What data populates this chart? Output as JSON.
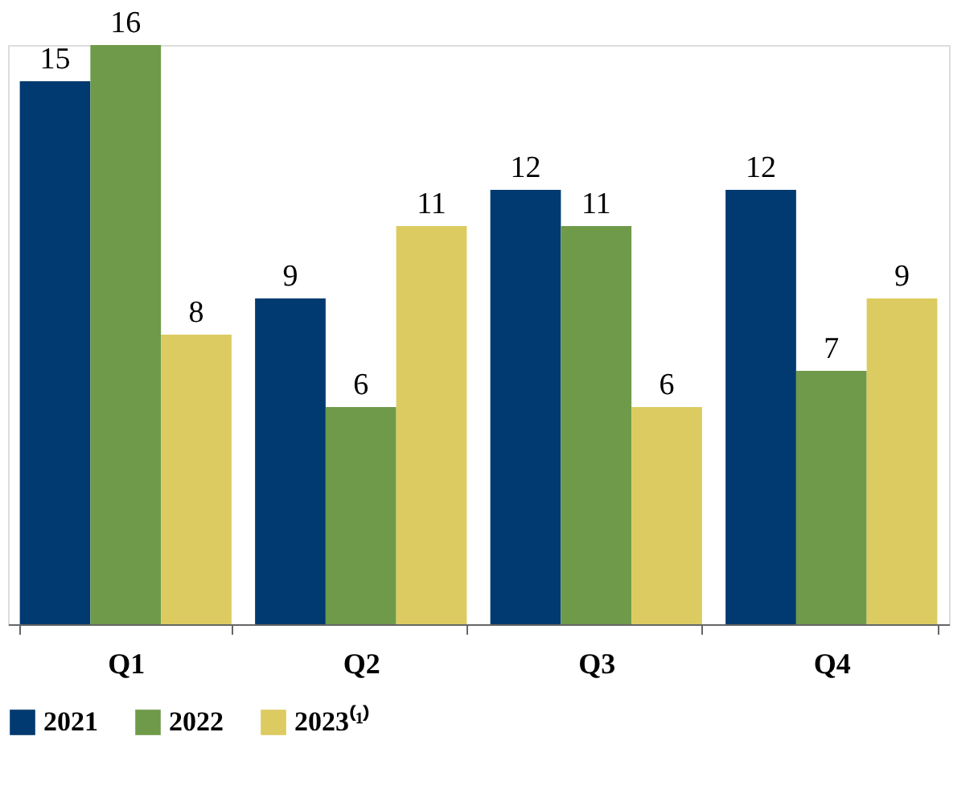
{
  "chart_data": {
    "type": "bar",
    "categories": [
      "Q1",
      "Q2",
      "Q3",
      "Q4"
    ],
    "series": [
      {
        "name": "2021",
        "color": "#003a70",
        "values": [
          15,
          9,
          12,
          12
        ]
      },
      {
        "name": "2022",
        "color": "#6f9a4a",
        "values": [
          16,
          6,
          11,
          7
        ]
      },
      {
        "name": "2023⁽¹⁾",
        "color": "#dccb60",
        "values": [
          8,
          11,
          6,
          9
        ]
      }
    ],
    "data_labels": true,
    "legend": "bottom",
    "grid": false,
    "tick_labels": "x"
  }
}
